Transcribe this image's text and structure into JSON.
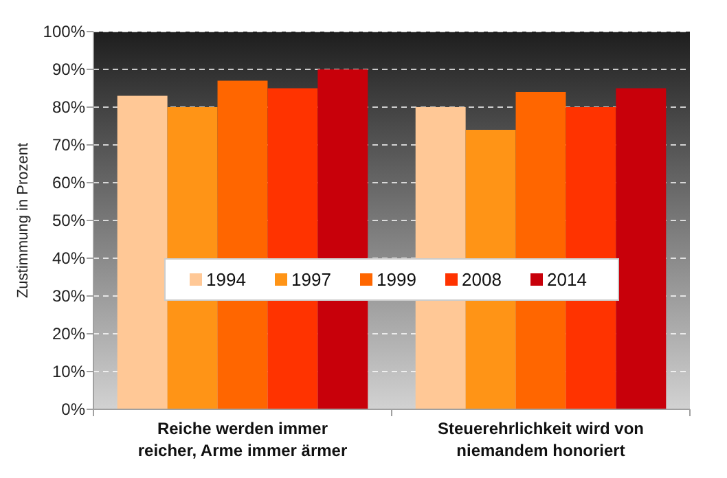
{
  "chart_data": {
    "type": "bar",
    "ylabel": "Zustimmung in Prozent",
    "categories": [
      "Reiche werden immer reicher, Arme immer ärmer",
      "Steuerehrlichkeit wird von niemandem honoriert"
    ],
    "series": [
      {
        "name": "1994",
        "color": "#ffc896",
        "values": [
          83,
          80
        ]
      },
      {
        "name": "1997",
        "color": "#ff9416",
        "values": [
          80,
          74
        ]
      },
      {
        "name": "1999",
        "color": "#ff6600",
        "values": [
          87,
          84
        ]
      },
      {
        "name": "2008",
        "color": "#ff3300",
        "values": [
          85,
          80
        ]
      },
      {
        "name": "2014",
        "color": "#c8000a",
        "values": [
          90,
          85
        ]
      }
    ],
    "ylim": [
      0,
      100
    ],
    "yticks": [
      {
        "value": 0,
        "label": "0%"
      },
      {
        "value": 10,
        "label": "10%"
      },
      {
        "value": 20,
        "label": "20%"
      },
      {
        "value": 30,
        "label": "30%"
      },
      {
        "value": 40,
        "label": "40%"
      },
      {
        "value": 50,
        "label": "50%"
      },
      {
        "value": 60,
        "label": "60%"
      },
      {
        "value": 70,
        "label": "70%"
      },
      {
        "value": 80,
        "label": "80%"
      },
      {
        "value": 90,
        "label": "90%"
      },
      {
        "value": 100,
        "label": "100%"
      }
    ],
    "grid": "y",
    "legend": "center"
  }
}
